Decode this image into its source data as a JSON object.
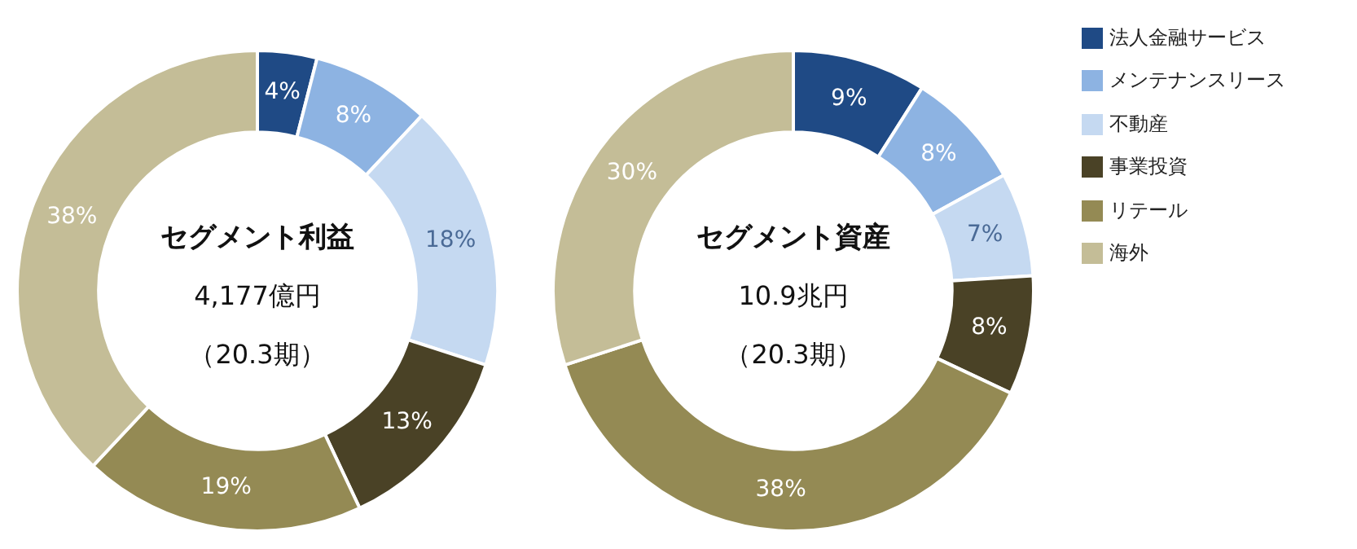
{
  "chart_data": [
    {
      "type": "donut",
      "title": "セグメント利益",
      "subtitle": "4,177億円",
      "annotations": [
        "（20.3期）"
      ],
      "categories": [
        "法人金融サービス",
        "メンテナンスリース",
        "不動産",
        "事業投資",
        "リテール",
        "海外"
      ],
      "values": [
        4,
        8,
        18,
        13,
        19,
        38
      ],
      "value_labels": [
        "4%",
        "8%",
        "18%",
        "13%",
        "19%",
        "38%"
      ],
      "colors": [
        "#1f4a85",
        "#8db3e2",
        "#c5d9f1",
        "#4a4226",
        "#948a54",
        "#c4bd97"
      ],
      "legend": "right"
    },
    {
      "type": "donut",
      "title": "セグメント資産",
      "subtitle": "10.9兆円",
      "annotations": [
        "（20.3期）"
      ],
      "categories": [
        null,
        null,
        null,
        null,
        null,
        null
      ],
      "values": [
        9,
        8,
        7,
        8,
        38,
        30
      ],
      "value_labels": [
        "9%",
        "8%",
        "7%",
        "8%",
        "38%",
        "30%"
      ],
      "colors": [
        "#1f4a85",
        "#8db3e2",
        "#c5d9f1",
        "#4a4226",
        "#948a54",
        "#c4bd97"
      ],
      "legend": false
    }
  ]
}
